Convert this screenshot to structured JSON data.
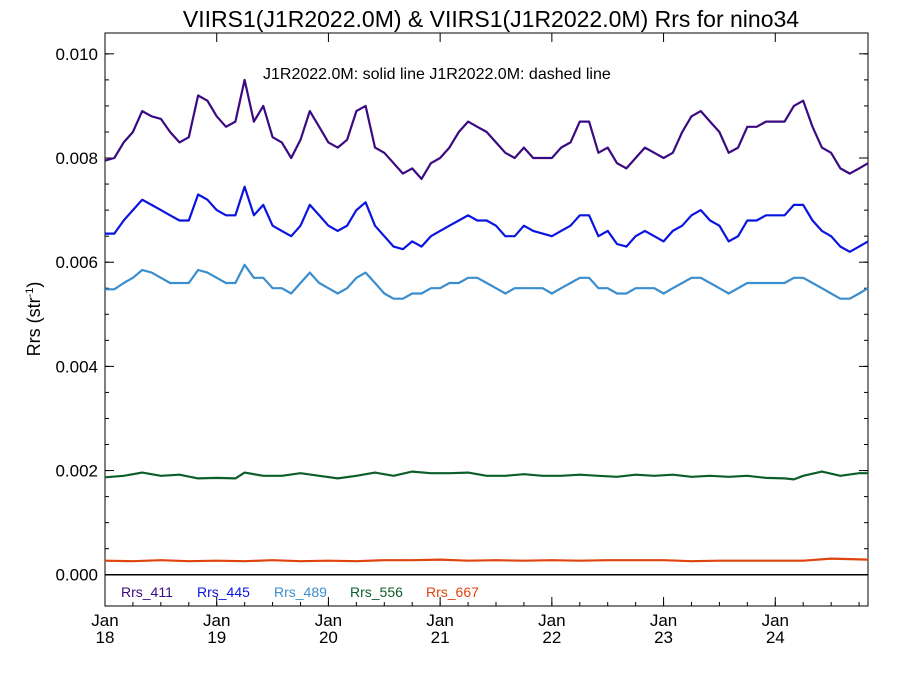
{
  "chart_data": {
    "type": "line",
    "title": "VIIRS1(J1R2022.0M) & VIIRS1(J1R2022.0M)  Rrs for nino34",
    "annotation": "J1R2022.0M: solid line   J1R2022.0M: dashed line",
    "ylabel": "Rrs (str",
    "ylabel_sup": "-1",
    "ylabel_end": ")",
    "ylim": [
      -0.0006,
      0.0104
    ],
    "xlim": [
      2018.0,
      2024.83
    ],
    "yticks": [
      {
        "value": 0.0,
        "label": "0.000"
      },
      {
        "value": 0.002,
        "label": "0.002"
      },
      {
        "value": 0.004,
        "label": "0.004"
      },
      {
        "value": 0.006,
        "label": "0.006"
      },
      {
        "value": 0.008,
        "label": "0.008"
      },
      {
        "value": 0.01,
        "label": "0.010"
      }
    ],
    "xticks": [
      {
        "value": 2018,
        "line1": "Jan",
        "line2": "18"
      },
      {
        "value": 2019,
        "line1": "Jan",
        "line2": "19"
      },
      {
        "value": 2020,
        "line1": "Jan",
        "line2": "20"
      },
      {
        "value": 2021,
        "line1": "Jan",
        "line2": "21"
      },
      {
        "value": 2022,
        "line1": "Jan",
        "line2": "22"
      },
      {
        "value": 2023,
        "line1": "Jan",
        "line2": "23"
      },
      {
        "value": 2024,
        "line1": "Jan",
        "line2": "24"
      }
    ],
    "zero_line": true,
    "grid": false,
    "legend_position": "bottom-left inside plot",
    "series": [
      {
        "name": "Rrs_411",
        "color": "#3b0a82",
        "x": [
          2018.0,
          2018.083,
          2018.167,
          2018.25,
          2018.333,
          2018.417,
          2018.5,
          2018.583,
          2018.667,
          2018.75,
          2018.833,
          2018.917,
          2019.0,
          2019.083,
          2019.167,
          2019.25,
          2019.333,
          2019.417,
          2019.5,
          2019.583,
          2019.667,
          2019.75,
          2019.833,
          2019.917,
          2020.0,
          2020.083,
          2020.167,
          2020.25,
          2020.333,
          2020.417,
          2020.5,
          2020.583,
          2020.667,
          2020.75,
          2020.833,
          2020.917,
          2021.0,
          2021.083,
          2021.167,
          2021.25,
          2021.333,
          2021.417,
          2021.5,
          2021.583,
          2021.667,
          2021.75,
          2021.833,
          2021.917,
          2022.0,
          2022.083,
          2022.167,
          2022.25,
          2022.333,
          2022.417,
          2022.5,
          2022.583,
          2022.667,
          2022.75,
          2022.833,
          2022.917,
          2023.0,
          2023.083,
          2023.167,
          2023.25,
          2023.333,
          2023.417,
          2023.5,
          2023.583,
          2023.667,
          2023.75,
          2023.833,
          2023.917,
          2024.0,
          2024.083,
          2024.167,
          2024.25,
          2024.333,
          2024.417,
          2024.5,
          2024.583,
          2024.667,
          2024.75,
          2024.83
        ],
        "values": [
          0.00795,
          0.008,
          0.0083,
          0.0085,
          0.0089,
          0.0088,
          0.00875,
          0.0085,
          0.0083,
          0.0084,
          0.0092,
          0.0091,
          0.0088,
          0.0086,
          0.0087,
          0.0095,
          0.0087,
          0.009,
          0.0084,
          0.0083,
          0.008,
          0.00835,
          0.0089,
          0.0086,
          0.0083,
          0.0082,
          0.00835,
          0.0089,
          0.009,
          0.0082,
          0.0081,
          0.0079,
          0.0077,
          0.0078,
          0.0076,
          0.0079,
          0.008,
          0.0082,
          0.0085,
          0.0087,
          0.0086,
          0.0085,
          0.0083,
          0.0081,
          0.008,
          0.0082,
          0.008,
          0.008,
          0.008,
          0.0082,
          0.0083,
          0.0087,
          0.0087,
          0.0081,
          0.0082,
          0.0079,
          0.0078,
          0.008,
          0.0082,
          0.0081,
          0.008,
          0.0081,
          0.0085,
          0.0088,
          0.0089,
          0.0087,
          0.0085,
          0.0081,
          0.0082,
          0.0086,
          0.0086,
          0.0087,
          0.0087,
          0.0087,
          0.009,
          0.0091,
          0.0086,
          0.0082,
          0.0081,
          0.0078,
          0.0077,
          0.0078,
          0.0079
        ]
      },
      {
        "name": "Rrs_445",
        "color": "#0a14e0",
        "x": [
          2018.0,
          2018.083,
          2018.167,
          2018.25,
          2018.333,
          2018.417,
          2018.5,
          2018.583,
          2018.667,
          2018.75,
          2018.833,
          2018.917,
          2019.0,
          2019.083,
          2019.167,
          2019.25,
          2019.333,
          2019.417,
          2019.5,
          2019.583,
          2019.667,
          2019.75,
          2019.833,
          2019.917,
          2020.0,
          2020.083,
          2020.167,
          2020.25,
          2020.333,
          2020.417,
          2020.5,
          2020.583,
          2020.667,
          2020.75,
          2020.833,
          2020.917,
          2021.0,
          2021.083,
          2021.167,
          2021.25,
          2021.333,
          2021.417,
          2021.5,
          2021.583,
          2021.667,
          2021.75,
          2021.833,
          2021.917,
          2022.0,
          2022.083,
          2022.167,
          2022.25,
          2022.333,
          2022.417,
          2022.5,
          2022.583,
          2022.667,
          2022.75,
          2022.833,
          2022.917,
          2023.0,
          2023.083,
          2023.167,
          2023.25,
          2023.333,
          2023.417,
          2023.5,
          2023.583,
          2023.667,
          2023.75,
          2023.833,
          2023.917,
          2024.0,
          2024.083,
          2024.167,
          2024.25,
          2024.333,
          2024.417,
          2024.5,
          2024.583,
          2024.667,
          2024.75,
          2024.83
        ],
        "values": [
          0.00655,
          0.00655,
          0.0068,
          0.007,
          0.0072,
          0.0071,
          0.007,
          0.0069,
          0.0068,
          0.0068,
          0.0073,
          0.0072,
          0.007,
          0.0069,
          0.0069,
          0.00745,
          0.0069,
          0.0071,
          0.0067,
          0.0066,
          0.0065,
          0.0067,
          0.0071,
          0.0069,
          0.0067,
          0.0066,
          0.0067,
          0.007,
          0.00715,
          0.0067,
          0.0065,
          0.0063,
          0.00625,
          0.0064,
          0.0063,
          0.0065,
          0.0066,
          0.0067,
          0.0068,
          0.0069,
          0.0068,
          0.0068,
          0.0067,
          0.0065,
          0.0065,
          0.0067,
          0.0066,
          0.00655,
          0.0065,
          0.0066,
          0.0067,
          0.0069,
          0.0069,
          0.0065,
          0.0066,
          0.00635,
          0.0063,
          0.0065,
          0.0066,
          0.0065,
          0.0064,
          0.0066,
          0.0067,
          0.0069,
          0.007,
          0.0068,
          0.0067,
          0.0064,
          0.0065,
          0.0068,
          0.0068,
          0.0069,
          0.0069,
          0.0069,
          0.0071,
          0.0071,
          0.0068,
          0.0066,
          0.0065,
          0.0063,
          0.0062,
          0.0063,
          0.0064
        ]
      },
      {
        "name": "Rrs_489",
        "color": "#3b8ecd",
        "x": [
          2018.0,
          2018.083,
          2018.167,
          2018.25,
          2018.333,
          2018.417,
          2018.5,
          2018.583,
          2018.667,
          2018.75,
          2018.833,
          2018.917,
          2019.0,
          2019.083,
          2019.167,
          2019.25,
          2019.333,
          2019.417,
          2019.5,
          2019.583,
          2019.667,
          2019.75,
          2019.833,
          2019.917,
          2020.0,
          2020.083,
          2020.167,
          2020.25,
          2020.333,
          2020.417,
          2020.5,
          2020.583,
          2020.667,
          2020.75,
          2020.833,
          2020.917,
          2021.0,
          2021.083,
          2021.167,
          2021.25,
          2021.333,
          2021.417,
          2021.5,
          2021.583,
          2021.667,
          2021.75,
          2021.833,
          2021.917,
          2022.0,
          2022.083,
          2022.167,
          2022.25,
          2022.333,
          2022.417,
          2022.5,
          2022.583,
          2022.667,
          2022.75,
          2022.833,
          2022.917,
          2023.0,
          2023.083,
          2023.167,
          2023.25,
          2023.333,
          2023.417,
          2023.5,
          2023.583,
          2023.667,
          2023.75,
          2023.833,
          2023.917,
          2024.0,
          2024.083,
          2024.167,
          2024.25,
          2024.333,
          2024.417,
          2024.5,
          2024.583,
          2024.667,
          2024.75,
          2024.83
        ],
        "values": [
          0.00548,
          0.00548,
          0.0056,
          0.0057,
          0.00585,
          0.0058,
          0.0057,
          0.0056,
          0.0056,
          0.0056,
          0.00585,
          0.0058,
          0.0057,
          0.0056,
          0.0056,
          0.00595,
          0.0057,
          0.0057,
          0.0055,
          0.0055,
          0.0054,
          0.0056,
          0.0058,
          0.0056,
          0.0055,
          0.0054,
          0.0055,
          0.0057,
          0.0058,
          0.0056,
          0.0054,
          0.0053,
          0.0053,
          0.0054,
          0.0054,
          0.0055,
          0.0055,
          0.0056,
          0.0056,
          0.0057,
          0.0057,
          0.0056,
          0.0055,
          0.0054,
          0.0055,
          0.0055,
          0.0055,
          0.0055,
          0.0054,
          0.0055,
          0.0056,
          0.0057,
          0.0057,
          0.0055,
          0.0055,
          0.0054,
          0.0054,
          0.0055,
          0.0055,
          0.0055,
          0.0054,
          0.0055,
          0.0056,
          0.0057,
          0.0057,
          0.0056,
          0.0055,
          0.0054,
          0.0055,
          0.0056,
          0.0056,
          0.0056,
          0.0056,
          0.0056,
          0.0057,
          0.0057,
          0.0056,
          0.0055,
          0.0054,
          0.0053,
          0.0053,
          0.0054,
          0.0055
        ]
      },
      {
        "name": "Rrs_556",
        "color": "#0d5e2a",
        "x": [
          2018.0,
          2018.167,
          2018.333,
          2018.5,
          2018.667,
          2018.833,
          2019.0,
          2019.167,
          2019.25,
          2019.417,
          2019.583,
          2019.75,
          2019.917,
          2020.083,
          2020.25,
          2020.417,
          2020.583,
          2020.75,
          2020.917,
          2021.083,
          2021.25,
          2021.417,
          2021.583,
          2021.75,
          2021.917,
          2022.083,
          2022.25,
          2022.417,
          2022.583,
          2022.75,
          2022.917,
          2023.083,
          2023.25,
          2023.417,
          2023.583,
          2023.75,
          2023.917,
          2024.083,
          2024.167,
          2024.25,
          2024.417,
          2024.583,
          2024.75,
          2024.83
        ],
        "values": [
          0.00187,
          0.0019,
          0.00196,
          0.0019,
          0.00192,
          0.00185,
          0.00186,
          0.00185,
          0.00196,
          0.0019,
          0.0019,
          0.00195,
          0.0019,
          0.00185,
          0.0019,
          0.00196,
          0.0019,
          0.00198,
          0.00195,
          0.00195,
          0.00196,
          0.0019,
          0.0019,
          0.00193,
          0.0019,
          0.0019,
          0.00192,
          0.0019,
          0.00188,
          0.00192,
          0.0019,
          0.00192,
          0.00188,
          0.0019,
          0.00188,
          0.0019,
          0.00186,
          0.00185,
          0.00183,
          0.0019,
          0.00198,
          0.0019,
          0.00195,
          0.00195
        ]
      },
      {
        "name": "Rrs_667",
        "color": "#e0440e",
        "x": [
          2018.0,
          2018.25,
          2018.5,
          2018.75,
          2019.0,
          2019.25,
          2019.5,
          2019.75,
          2020.0,
          2020.25,
          2020.5,
          2020.75,
          2021.0,
          2021.25,
          2021.5,
          2021.75,
          2022.0,
          2022.25,
          2022.5,
          2022.75,
          2023.0,
          2023.25,
          2023.5,
          2023.75,
          2024.0,
          2024.25,
          2024.5,
          2024.83
        ],
        "values": [
          0.00027,
          0.00026,
          0.00028,
          0.00026,
          0.00027,
          0.00026,
          0.00028,
          0.00026,
          0.00027,
          0.00026,
          0.00028,
          0.00028,
          0.00029,
          0.00027,
          0.00028,
          0.00027,
          0.00028,
          0.00027,
          0.00028,
          0.00028,
          0.00028,
          0.00026,
          0.00027,
          0.00027,
          0.00027,
          0.00027,
          0.00031,
          0.00029
        ]
      }
    ]
  }
}
